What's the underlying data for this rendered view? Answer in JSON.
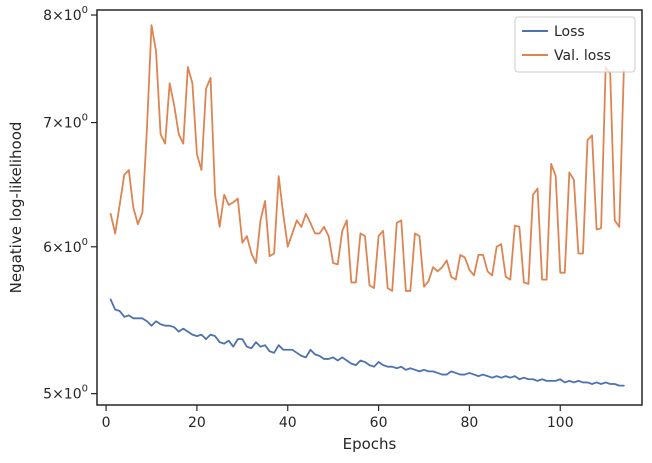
{
  "chart_data": {
    "type": "line",
    "xlabel": "Epochs",
    "ylabel": "Negative log-likelihood",
    "yscale": "log",
    "xlim": [
      -2,
      118
    ],
    "ylim": [
      4.93,
      8.05
    ],
    "x_ticks": [
      0,
      20,
      40,
      60,
      80,
      100
    ],
    "x_tick_labels": [
      "0",
      "20",
      "40",
      "60",
      "80",
      "100"
    ],
    "y_ticks": [
      5,
      6,
      7,
      8
    ],
    "y_tick_labels": [
      {
        "mant": "5",
        "base": "10",
        "exp": "0"
      },
      {
        "mant": "6",
        "base": "10",
        "exp": "0"
      },
      {
        "mant": "7",
        "base": "10",
        "exp": "0"
      },
      {
        "mant": "8",
        "base": "10",
        "exp": "0"
      }
    ],
    "grid": false,
    "legend_position": "top-right",
    "x": [
      1,
      2,
      3,
      4,
      5,
      6,
      7,
      8,
      9,
      10,
      11,
      12,
      13,
      14,
      15,
      16,
      17,
      18,
      19,
      20,
      21,
      22,
      23,
      24,
      25,
      26,
      27,
      28,
      29,
      30,
      31,
      32,
      33,
      34,
      35,
      36,
      37,
      38,
      39,
      40,
      41,
      42,
      43,
      44,
      45,
      46,
      47,
      48,
      49,
      50,
      51,
      52,
      53,
      54,
      55,
      56,
      57,
      58,
      59,
      60,
      61,
      62,
      63,
      64,
      65,
      66,
      67,
      68,
      69,
      70,
      71,
      72,
      73,
      74,
      75,
      76,
      77,
      78,
      79,
      80,
      81,
      82,
      83,
      84,
      85,
      86,
      87,
      88,
      89,
      90,
      91,
      92,
      93,
      94,
      95,
      96,
      97,
      98,
      99,
      100,
      101,
      102,
      103,
      104,
      105,
      106,
      107,
      108,
      109,
      110,
      111,
      112,
      113,
      114
    ],
    "series": [
      {
        "name": "Loss",
        "color": "#4c72b0",
        "values": [
          5.62,
          5.55,
          5.54,
          5.5,
          5.51,
          5.49,
          5.49,
          5.49,
          5.47,
          5.44,
          5.47,
          5.45,
          5.44,
          5.44,
          5.43,
          5.4,
          5.42,
          5.4,
          5.38,
          5.37,
          5.38,
          5.35,
          5.38,
          5.37,
          5.33,
          5.32,
          5.34,
          5.3,
          5.35,
          5.35,
          5.3,
          5.29,
          5.33,
          5.3,
          5.31,
          5.27,
          5.26,
          5.31,
          5.28,
          5.28,
          5.28,
          5.26,
          5.24,
          5.23,
          5.28,
          5.25,
          5.24,
          5.22,
          5.22,
          5.23,
          5.21,
          5.23,
          5.21,
          5.19,
          5.18,
          5.21,
          5.2,
          5.18,
          5.17,
          5.2,
          5.18,
          5.17,
          5.17,
          5.16,
          5.17,
          5.15,
          5.16,
          5.15,
          5.14,
          5.15,
          5.14,
          5.14,
          5.13,
          5.12,
          5.12,
          5.14,
          5.13,
          5.12,
          5.12,
          5.13,
          5.12,
          5.11,
          5.12,
          5.11,
          5.1,
          5.11,
          5.1,
          5.11,
          5.1,
          5.11,
          5.09,
          5.1,
          5.09,
          5.09,
          5.08,
          5.09,
          5.08,
          5.08,
          5.08,
          5.09,
          5.07,
          5.08,
          5.07,
          5.08,
          5.07,
          5.07,
          5.06,
          5.07,
          5.06,
          5.07,
          5.06,
          5.06,
          5.05,
          5.05
        ]
      },
      {
        "name": "Val. loss",
        "color": "#dd8452",
        "values": [
          6.25,
          6.1,
          6.32,
          6.56,
          6.6,
          6.3,
          6.17,
          6.26,
          6.95,
          7.9,
          7.65,
          6.9,
          6.82,
          7.35,
          7.15,
          6.9,
          6.82,
          7.5,
          7.35,
          6.73,
          6.6,
          7.3,
          7.4,
          6.4,
          6.15,
          6.4,
          6.32,
          6.34,
          6.37,
          6.03,
          6.08,
          5.95,
          5.88,
          6.2,
          6.35,
          5.93,
          5.95,
          6.55,
          6.25,
          6.0,
          6.1,
          6.2,
          6.15,
          6.25,
          6.18,
          6.1,
          6.1,
          6.15,
          6.08,
          5.88,
          5.87,
          6.12,
          6.2,
          5.74,
          5.74,
          6.1,
          6.08,
          5.72,
          5.7,
          6.08,
          6.12,
          5.7,
          5.68,
          6.18,
          6.2,
          5.68,
          5.68,
          6.1,
          6.08,
          5.71,
          5.75,
          5.85,
          5.82,
          5.85,
          5.9,
          5.78,
          5.76,
          5.94,
          5.92,
          5.83,
          5.79,
          5.94,
          5.94,
          5.82,
          5.79,
          6.0,
          6.02,
          5.78,
          5.76,
          6.16,
          6.15,
          5.74,
          5.73,
          6.4,
          6.45,
          5.76,
          5.76,
          6.65,
          6.55,
          5.81,
          5.81,
          6.58,
          6.52,
          5.95,
          5.95,
          6.85,
          6.89,
          6.13,
          6.14,
          7.5,
          7.44,
          6.2,
          6.15,
          7.47
        ]
      }
    ]
  }
}
